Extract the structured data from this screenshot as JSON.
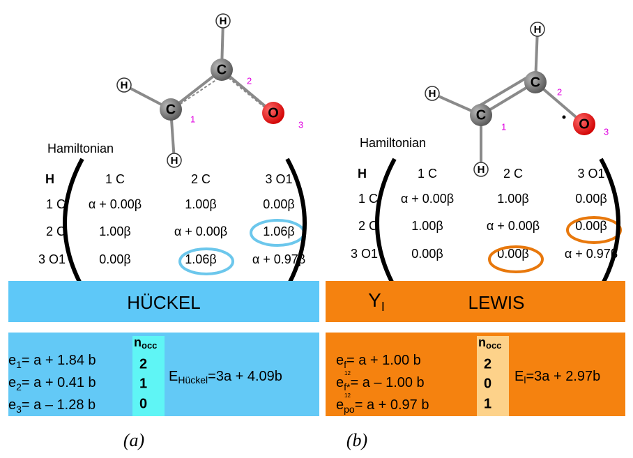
{
  "panels": [
    {
      "atoms": [
        "H",
        "C",
        "C",
        "O",
        "H",
        "H"
      ],
      "atom_numbers": [
        "1",
        "2",
        "3"
      ],
      "hamiltonian_label": "Hamiltonian",
      "matrix": {
        "header": [
          "H",
          "1 C",
          "2 C",
          "3 O1"
        ],
        "rows": [
          [
            "1 C",
            "α + 0.00β",
            "1.00β",
            "0.00β"
          ],
          [
            "2 C",
            "1.00β",
            "α + 0.00β",
            "1.06β"
          ],
          [
            "3 O1",
            "0.00β",
            "1.06β",
            "α + 0.97β"
          ]
        ]
      },
      "banner": {
        "text": "HÜCKEL"
      },
      "energies": [
        {
          "symbol": "e",
          "sub": "1",
          "rhs": "= a + 1.84 b"
        },
        {
          "symbol": "e",
          "sub": "2",
          "rhs": "= a + 0.41 b"
        },
        {
          "symbol": "e",
          "sub": "3",
          "rhs": "= a – 1.28 b"
        }
      ],
      "occupation": {
        "label": "n",
        "sub": "occ",
        "values": [
          2,
          1,
          0
        ]
      },
      "total": {
        "symbol": "E",
        "sub": "Hückel",
        "rhs": "=3a + 4.09b"
      },
      "caption": "(a)"
    },
    {
      "atoms": [
        "H",
        "C",
        "C",
        "O",
        "H",
        "H"
      ],
      "atom_numbers": [
        "1",
        "2",
        "3"
      ],
      "hamiltonian_label": "Hamiltonian",
      "matrix": {
        "header": [
          "H",
          "1 C",
          "2 C",
          "3 O1"
        ],
        "rows": [
          [
            "1 C",
            "α + 0.00β",
            "1.00β",
            "0.00β"
          ],
          [
            "2 C",
            "1.00β",
            "α + 0.00β",
            "0.00β"
          ],
          [
            "3 O1",
            "0.00β",
            "0.00β",
            "α + 0.97β"
          ]
        ]
      },
      "banner": {
        "symbol": "Y",
        "sub": "I",
        "text": "LEWIS"
      },
      "energies": [
        {
          "symbol": "e",
          "sub": "f",
          "rhs": "= a + 1.00 b"
        },
        {
          "symbol": "e",
          "sub": "f*",
          "note": "12",
          "rhs": "= a – 1.00 b"
        },
        {
          "symbol": "e",
          "sub": "po",
          "note": "12",
          "rhs": "= a + 0.97 b"
        }
      ],
      "occupation": {
        "label": "n",
        "sub": "occ",
        "values": [
          2,
          0,
          1
        ]
      },
      "total": {
        "symbol": "E",
        "sub": "l",
        "rhs": "=3a + 2.97b"
      },
      "caption": "(b)"
    }
  ]
}
